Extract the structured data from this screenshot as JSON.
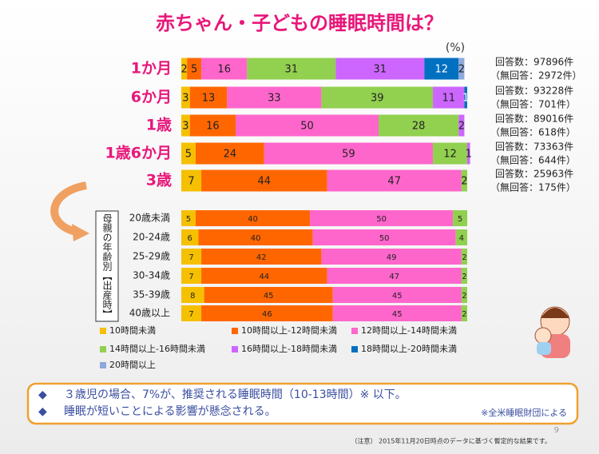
{
  "chart_data": [
    {
      "type": "bar",
      "orientation": "horizontal",
      "stacked": true,
      "title": "赤ちゃん・子どもの睡眠時間は？",
      "unit": "(%)",
      "categories": [
        "1か月",
        "6か月",
        "1歳",
        "1歳6か月",
        "3歳"
      ],
      "series": [
        {
          "name": "10時間未満",
          "color": "#f5c000",
          "values": [
            2,
            3,
            3,
            5,
            7
          ]
        },
        {
          "name": "10時間以上-12時間未満",
          "color": "#ff6600",
          "values": [
            5,
            13,
            16,
            24,
            44
          ]
        },
        {
          "name": "12時間以上-14時間未満",
          "color": "#ff66cc",
          "values": [
            16,
            33,
            50,
            59,
            47
          ]
        },
        {
          "name": "14時間以上-16時間未満",
          "color": "#92d050",
          "values": [
            31,
            39,
            28,
            12,
            2
          ]
        },
        {
          "name": "16時間以上-18時間未満",
          "color": "#cc66ff",
          "values": [
            31,
            11,
            2,
            1,
            null
          ]
        },
        {
          "name": "18時間以上-20時間未満",
          "color": "#0070c0",
          "values": [
            12,
            1,
            null,
            null,
            null
          ]
        },
        {
          "name": "20時間以上",
          "color": "#8ea9db",
          "values": [
            2,
            null,
            null,
            null,
            null
          ]
        }
      ],
      "responses": [
        "回答数：97896件",
        "回答数：93228件",
        "回答数：89016件",
        "回答数：73363件",
        "回答数：25963件"
      ],
      "no_responses": [
        "（無回答：2972件）",
        "（無回答：701件）",
        "（無回答：618件）",
        "（無回答：644件）",
        "（無回答：175件）"
      ]
    },
    {
      "type": "bar",
      "orientation": "horizontal",
      "stacked": true,
      "label": "母親の年齢別【出産時】",
      "categories": [
        "20歳未満",
        "20-24歳",
        "25-29歳",
        "30-34歳",
        "35-39歳",
        "40歳以上"
      ],
      "series": [
        {
          "color": "#f5c000",
          "values": [
            5,
            6,
            7,
            7,
            8,
            7
          ]
        },
        {
          "color": "#ff6600",
          "values": [
            40,
            40,
            42,
            44,
            45,
            46
          ]
        },
        {
          "color": "#ff66cc",
          "values": [
            50,
            50,
            49,
            47,
            45,
            45
          ]
        },
        {
          "color": "#92d050",
          "values": [
            5,
            4,
            2,
            2,
            2,
            2
          ]
        }
      ]
    }
  ],
  "notes": {
    "lines": [
      "３歳児の場合、7%が、推奨される睡眠時間（10-13時間）※ 以下。",
      "睡眠が短いことによる影響が懸念される。"
    ],
    "source": "※全米睡眠財団による"
  },
  "page_number": "9",
  "footnote": "（注意） 2015年11月20日時点のデータに基づく暫定的な結果です。"
}
